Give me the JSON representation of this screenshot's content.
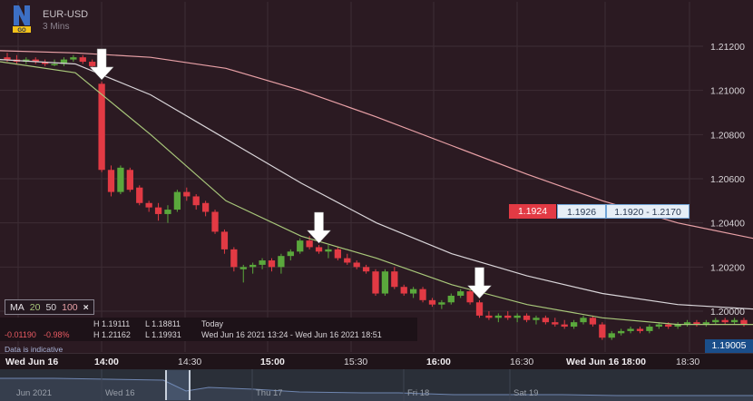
{
  "header": {
    "symbol": "EUR-USD",
    "timeframe": "3 Mins",
    "logo_badge": "GO"
  },
  "price_boxes": {
    "sell": "1.1924",
    "buy": "1.1926",
    "range": "1.1920 - 1.2170"
  },
  "ma_bar": {
    "label": "MA",
    "periods": [
      "20",
      "50",
      "100"
    ],
    "close": "×"
  },
  "info": {
    "h1_label": "H 1.19111",
    "l1_label": "L 1.18811",
    "today": "Today",
    "change": "-0.01190",
    "change_pct": "-0.98%",
    "h2_label": "H 1.21162",
    "l2_label": "L 1.19931",
    "range_time": "Wed Jun 16 2021 13:24 - Wed Jun 16 2021 18:51"
  },
  "disclaimer": "Data is indicative",
  "last_price": "1.19005",
  "x_axis": [
    {
      "label": "Wed Jun 16",
      "bold": true
    },
    {
      "label": "14:00",
      "bold": true
    },
    {
      "label": "14:30",
      "bold": false
    },
    {
      "label": "15:00",
      "bold": true
    },
    {
      "label": "15:30",
      "bold": false
    },
    {
      "label": "16:00",
      "bold": true
    },
    {
      "label": "16:30",
      "bold": false
    },
    {
      "label": "Wed Jun 16 18:00",
      "bold": true
    },
    {
      "label": "18:30",
      "bold": false
    }
  ],
  "navigator": [
    "Jun 2021",
    "Wed 16",
    "Thu 17",
    "Fri 18",
    "Sat 19"
  ],
  "colors": {
    "up": "#5aa83c",
    "down": "#e23a44",
    "ma20": "#a8c77a",
    "ma50": "#d9d5d9",
    "ma100": "#e8a0a6",
    "arrow": "#ffffff"
  },
  "chart_data": {
    "type": "candlestick",
    "y_ticks": [
      "1.21200",
      "1.21000",
      "1.20800",
      "1.20600",
      "1.20400",
      "1.20200",
      "1.20000"
    ],
    "ylim": [
      1.1984,
      1.2135
    ],
    "candles": [
      {
        "o": 1.2115,
        "h": 1.2117,
        "l": 1.2113,
        "c": 1.2114
      },
      {
        "o": 1.2114,
        "h": 1.2116,
        "l": 1.2112,
        "c": 1.2113
      },
      {
        "o": 1.2113,
        "h": 1.2115,
        "l": 1.2112,
        "c": 1.2114
      },
      {
        "o": 1.2114,
        "h": 1.2115,
        "l": 1.2112,
        "c": 1.2113
      },
      {
        "o": 1.2113,
        "h": 1.2114,
        "l": 1.2111,
        "c": 1.2112
      },
      {
        "o": 1.2112,
        "h": 1.2114,
        "l": 1.2111,
        "c": 1.2112
      },
      {
        "o": 1.2112,
        "h": 1.2115,
        "l": 1.2111,
        "c": 1.2114
      },
      {
        "o": 1.2114,
        "h": 1.2116,
        "l": 1.2113,
        "c": 1.2115
      },
      {
        "o": 1.2115,
        "h": 1.2116,
        "l": 1.2112,
        "c": 1.2113
      },
      {
        "o": 1.2113,
        "h": 1.2114,
        "l": 1.211,
        "c": 1.2111
      },
      {
        "o": 1.2103,
        "h": 1.2104,
        "l": 1.2063,
        "c": 1.2064
      },
      {
        "o": 1.2064,
        "h": 1.2066,
        "l": 1.2052,
        "c": 1.2054
      },
      {
        "o": 1.2054,
        "h": 1.2066,
        "l": 1.2053,
        "c": 1.2065
      },
      {
        "o": 1.2064,
        "h": 1.2065,
        "l": 1.2054,
        "c": 1.2055
      },
      {
        "o": 1.2056,
        "h": 1.2057,
        "l": 1.2048,
        "c": 1.2049
      },
      {
        "o": 1.2049,
        "h": 1.205,
        "l": 1.2045,
        "c": 1.2047
      },
      {
        "o": 1.2047,
        "h": 1.2049,
        "l": 1.2041,
        "c": 1.2044
      },
      {
        "o": 1.2044,
        "h": 1.2048,
        "l": 1.204,
        "c": 1.2046
      },
      {
        "o": 1.2046,
        "h": 1.2055,
        "l": 1.2045,
        "c": 1.2054
      },
      {
        "o": 1.2054,
        "h": 1.2056,
        "l": 1.205,
        "c": 1.2052
      },
      {
        "o": 1.2052,
        "h": 1.2053,
        "l": 1.2046,
        "c": 1.2048
      },
      {
        "o": 1.2049,
        "h": 1.205,
        "l": 1.2043,
        "c": 1.2045
      },
      {
        "o": 1.2045,
        "h": 1.2046,
        "l": 1.2035,
        "c": 1.2036
      },
      {
        "o": 1.2036,
        "h": 1.2037,
        "l": 1.2026,
        "c": 1.2028
      },
      {
        "o": 1.2028,
        "h": 1.2029,
        "l": 1.2018,
        "c": 1.202
      },
      {
        "o": 1.2019,
        "h": 1.2021,
        "l": 1.2013,
        "c": 1.202
      },
      {
        "o": 1.202,
        "h": 1.2022,
        "l": 1.2017,
        "c": 1.2021
      },
      {
        "o": 1.2021,
        "h": 1.2024,
        "l": 1.2019,
        "c": 1.2023
      },
      {
        "o": 1.2023,
        "h": 1.2024,
        "l": 1.2018,
        "c": 1.202
      },
      {
        "o": 1.202,
        "h": 1.2026,
        "l": 1.2017,
        "c": 1.2025
      },
      {
        "o": 1.2025,
        "h": 1.2028,
        "l": 1.2023,
        "c": 1.2027
      },
      {
        "o": 1.2027,
        "h": 1.2033,
        "l": 1.2026,
        "c": 1.2032
      },
      {
        "o": 1.2032,
        "h": 1.2034,
        "l": 1.2028,
        "c": 1.2029
      },
      {
        "o": 1.2029,
        "h": 1.203,
        "l": 1.2026,
        "c": 1.2027
      },
      {
        "o": 1.2027,
        "h": 1.203,
        "l": 1.2024,
        "c": 1.2028
      },
      {
        "o": 1.2028,
        "h": 1.2029,
        "l": 1.2023,
        "c": 1.2024
      },
      {
        "o": 1.2024,
        "h": 1.2026,
        "l": 1.2021,
        "c": 1.2022
      },
      {
        "o": 1.2022,
        "h": 1.2023,
        "l": 1.2019,
        "c": 1.202
      },
      {
        "o": 1.202,
        "h": 1.2021,
        "l": 1.2017,
        "c": 1.2018
      },
      {
        "o": 1.2018,
        "h": 1.2019,
        "l": 1.2007,
        "c": 1.2008
      },
      {
        "o": 1.2008,
        "h": 1.2019,
        "l": 1.2007,
        "c": 1.2018
      },
      {
        "o": 1.2018,
        "h": 1.202,
        "l": 1.201,
        "c": 1.2011
      },
      {
        "o": 1.2011,
        "h": 1.2012,
        "l": 1.2007,
        "c": 1.2008
      },
      {
        "o": 1.2008,
        "h": 1.2011,
        "l": 1.2006,
        "c": 1.201
      },
      {
        "o": 1.201,
        "h": 1.2011,
        "l": 1.2004,
        "c": 1.2005
      },
      {
        "o": 1.2005,
        "h": 1.2006,
        "l": 1.2002,
        "c": 1.2003
      },
      {
        "o": 1.2003,
        "h": 1.2005,
        "l": 1.2001,
        "c": 1.2004
      },
      {
        "o": 1.2004,
        "h": 1.2008,
        "l": 1.2003,
        "c": 1.2007
      },
      {
        "o": 1.2007,
        "h": 1.201,
        "l": 1.2006,
        "c": 1.2009
      },
      {
        "o": 1.2009,
        "h": 1.201,
        "l": 1.2003,
        "c": 1.2004
      },
      {
        "o": 1.2004,
        "h": 1.2005,
        "l": 1.1997,
        "c": 1.1998
      },
      {
        "o": 1.1998,
        "h": 1.2,
        "l": 1.1996,
        "c": 1.1997
      },
      {
        "o": 1.1997,
        "h": 1.1999,
        "l": 1.1995,
        "c": 1.1998
      },
      {
        "o": 1.1998,
        "h": 1.2,
        "l": 1.1996,
        "c": 1.1997
      },
      {
        "o": 1.1997,
        "h": 1.1999,
        "l": 1.1995,
        "c": 1.1998
      },
      {
        "o": 1.1998,
        "h": 1.1999,
        "l": 1.1995,
        "c": 1.1996
      },
      {
        "o": 1.1996,
        "h": 1.1998,
        "l": 1.1994,
        "c": 1.1997
      },
      {
        "o": 1.1997,
        "h": 1.1998,
        "l": 1.1994,
        "c": 1.1995
      },
      {
        "o": 1.1995,
        "h": 1.1997,
        "l": 1.1993,
        "c": 1.1994
      },
      {
        "o": 1.1994,
        "h": 1.1996,
        "l": 1.1992,
        "c": 1.1993
      },
      {
        "o": 1.1993,
        "h": 1.1996,
        "l": 1.1992,
        "c": 1.1995
      },
      {
        "o": 1.1995,
        "h": 1.1998,
        "l": 1.1994,
        "c": 1.1997
      },
      {
        "o": 1.1997,
        "h": 1.1998,
        "l": 1.1993,
        "c": 1.1994
      },
      {
        "o": 1.1994,
        "h": 1.1995,
        "l": 1.1987,
        "c": 1.1988
      },
      {
        "o": 1.1988,
        "h": 1.1991,
        "l": 1.1987,
        "c": 1.199
      },
      {
        "o": 1.199,
        "h": 1.1992,
        "l": 1.1989,
        "c": 1.1991
      },
      {
        "o": 1.1991,
        "h": 1.1993,
        "l": 1.199,
        "c": 1.1992
      },
      {
        "o": 1.1992,
        "h": 1.1993,
        "l": 1.199,
        "c": 1.1991
      },
      {
        "o": 1.1991,
        "h": 1.1994,
        "l": 1.199,
        "c": 1.1993
      },
      {
        "o": 1.1993,
        "h": 1.1995,
        "l": 1.1992,
        "c": 1.1994
      },
      {
        "o": 1.1994,
        "h": 1.1995,
        "l": 1.1992,
        "c": 1.1993
      },
      {
        "o": 1.1993,
        "h": 1.1995,
        "l": 1.1992,
        "c": 1.1994
      },
      {
        "o": 1.1994,
        "h": 1.1996,
        "l": 1.1993,
        "c": 1.1995
      },
      {
        "o": 1.1995,
        "h": 1.1996,
        "l": 1.1993,
        "c": 1.1994
      },
      {
        "o": 1.1994,
        "h": 1.1996,
        "l": 1.1993,
        "c": 1.1995
      },
      {
        "o": 1.1995,
        "h": 1.1997,
        "l": 1.1994,
        "c": 1.1996
      },
      {
        "o": 1.1996,
        "h": 1.1997,
        "l": 1.1994,
        "c": 1.1995
      },
      {
        "o": 1.1995,
        "h": 1.1997,
        "l": 1.1994,
        "c": 1.1996
      },
      {
        "o": 1.1996,
        "h": 1.1997,
        "l": 1.1993,
        "c": 1.1994
      }
    ],
    "ma100": [
      1.2118,
      1.2117,
      1.2115,
      1.211,
      1.21,
      1.2088,
      1.2075,
      1.2062,
      1.205,
      1.204,
      1.2033
    ],
    "ma50": [
      1.2114,
      1.2112,
      1.2098,
      1.2078,
      1.2058,
      1.204,
      1.2026,
      1.2016,
      1.2008,
      1.2003,
      1.2001
    ],
    "ma20": [
      1.2113,
      1.2108,
      1.208,
      1.205,
      1.2034,
      1.2024,
      1.2012,
      1.2003,
      1.1997,
      1.1994,
      1.1994
    ],
    "arrows": [
      10,
      33,
      50
    ]
  }
}
